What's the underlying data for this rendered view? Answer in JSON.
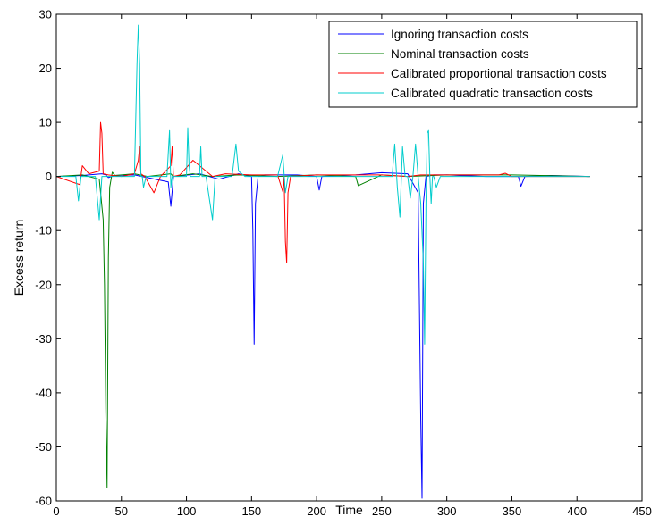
{
  "chart_data": {
    "type": "line",
    "xlabel": "Time",
    "ylabel": "Excess return",
    "xlim": [
      0,
      450
    ],
    "ylim": [
      -60,
      30
    ],
    "xticks": [
      0,
      50,
      100,
      150,
      200,
      250,
      300,
      350,
      400,
      450
    ],
    "yticks": [
      -60,
      -50,
      -40,
      -30,
      -20,
      -10,
      0,
      10,
      20,
      30
    ],
    "xtick_labels": [
      "0",
      "50",
      "100",
      "150",
      "200",
      "250",
      "300",
      "350",
      "400",
      "450"
    ],
    "ytick_labels": [
      "-60",
      "-50",
      "-40",
      "-30",
      "-20",
      "-10",
      "0",
      "10",
      "20",
      "30"
    ],
    "grid": false,
    "legend_position": "top-right",
    "series": [
      {
        "name": "Ignoring transaction costs",
        "color": "#0000ff",
        "x": [
          0,
          20,
          35,
          38,
          40,
          45,
          60,
          86,
          88,
          90,
          110,
          125,
          140,
          150,
          151,
          152,
          153,
          155,
          160,
          185,
          200,
          202,
          204,
          230,
          250,
          270,
          278,
          280,
          281,
          282,
          284,
          290,
          300,
          330,
          355,
          357,
          360,
          380,
          410
        ],
        "y": [
          0,
          0.2,
          0.5,
          0.3,
          -0.2,
          0.2,
          0.3,
          -1,
          -5.5,
          0,
          0.5,
          -0.5,
          0.5,
          0,
          -10,
          -31,
          -5,
          0,
          0.3,
          0.3,
          0,
          -2.5,
          0,
          0.3,
          0.7,
          0.5,
          -3,
          -45,
          -59.5,
          -5,
          0,
          0.3,
          0.3,
          0,
          0,
          -1.8,
          0,
          0.2,
          0
        ]
      },
      {
        "name": "Nominal transaction costs",
        "color": "#008000",
        "x": [
          0,
          20,
          33,
          36,
          37,
          38,
          39,
          40,
          41,
          43,
          45,
          60,
          70,
          88,
          90,
          105,
          120,
          140,
          170,
          200,
          230,
          232,
          250,
          270,
          300,
          350,
          410
        ],
        "y": [
          0,
          0.3,
          -0.5,
          -8,
          -20,
          -43,
          -57.5,
          -15,
          -2,
          0.8,
          0.2,
          0.5,
          0,
          0.5,
          0,
          0.5,
          0,
          0.3,
          0,
          0.3,
          0,
          -1.7,
          0.3,
          0,
          0.3,
          0.3,
          0
        ]
      },
      {
        "name": "Calibrated proportional transaction costs",
        "color": "#ff0000",
        "x": [
          0,
          18,
          20,
          25,
          33,
          34,
          35,
          36,
          40,
          50,
          60,
          63,
          64,
          65,
          68,
          75,
          80,
          88,
          89,
          90,
          95,
          105,
          120,
          130,
          150,
          170,
          174,
          175,
          176,
          177,
          178,
          180,
          200,
          250,
          270,
          280,
          300,
          340,
          345,
          350,
          410
        ],
        "y": [
          0,
          -1.5,
          2,
          0.5,
          1,
          10,
          8,
          0.5,
          0.3,
          0,
          0.5,
          3,
          5.5,
          0.5,
          0,
          -3,
          0,
          2,
          5.5,
          0,
          0.3,
          3,
          0,
          0.5,
          0.3,
          0.3,
          -2.8,
          0,
          -12,
          -16,
          -3,
          0,
          0.3,
          0.3,
          0,
          0.3,
          0.3,
          0.3,
          0.6,
          0,
          0
        ]
      },
      {
        "name": "Calibrated quadratic transaction costs",
        "color": "#00cccc",
        "x": [
          0,
          15,
          17,
          19,
          30,
          33,
          34,
          35,
          36,
          60,
          62,
          63,
          64,
          65,
          66,
          67,
          69,
          75,
          85,
          87,
          88,
          89,
          95,
          100,
          101,
          102,
          103,
          105,
          110,
          111,
          112,
          115,
          120,
          121,
          122,
          125,
          135,
          138,
          140,
          145,
          170,
          172,
          174,
          176,
          178,
          180,
          200,
          250,
          258,
          260,
          262,
          264,
          266,
          268,
          270,
          272,
          274,
          276,
          278,
          280,
          282,
          283,
          284,
          285,
          286,
          287,
          288,
          289,
          290,
          292,
          295,
          300,
          410
        ],
        "y": [
          0,
          0,
          -4.5,
          0,
          0,
          -8,
          -4,
          0,
          0,
          0,
          21,
          28,
          21,
          0,
          0,
          -2,
          0,
          0,
          0,
          8.5,
          -2,
          0,
          0,
          0,
          9,
          2,
          0,
          0,
          0,
          5.5,
          0,
          0,
          -8,
          -4,
          0,
          0,
          0,
          6,
          1,
          0,
          0,
          2,
          4,
          -3,
          0,
          0,
          0,
          0,
          0,
          6,
          -2,
          -7.5,
          5.5,
          0,
          0,
          -4,
          0,
          6,
          0,
          -5,
          -16,
          -31,
          -5,
          8,
          8.5,
          0,
          -5,
          0,
          0,
          -2,
          0,
          0,
          0
        ]
      }
    ]
  }
}
